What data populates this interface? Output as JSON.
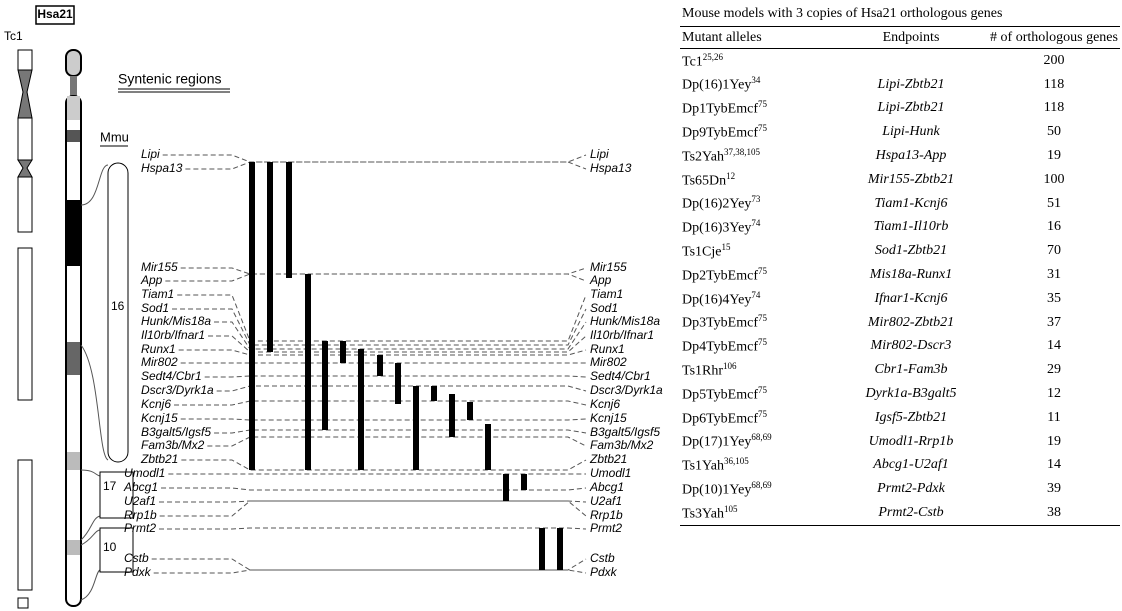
{
  "figure": {
    "tc1_label": "Tc1",
    "hsa21_label": "Hsa21",
    "syntenic_title": "Syntenic regions",
    "mmu_label": "Mmu",
    "chromosomes": [
      "16",
      "17",
      "10"
    ],
    "genes": [
      "Lipi",
      "Hspa13",
      "Mir155",
      "App",
      "Tiam1",
      "Sod1",
      "Hunk/Mis18a",
      "Il10rb/Ifnar1",
      "Runx1",
      "Mir802",
      "Sedt4/Cbr1",
      "Dscr3/Dyrk1a",
      "Kcnj6",
      "Kcnj15",
      "B3galt5/Igsf5",
      "Fam3b/Mx2",
      "Zbtb21",
      "Umodl1",
      "Abcg1",
      "U2af1",
      "Rrp1b",
      "Prmt2",
      "Cstb",
      "Pdxk"
    ]
  },
  "table": {
    "title": "Mouse models with 3 copies of Hsa21 orthologous genes",
    "headers": [
      "Mutant alleles",
      "Endpoints",
      "# of orthologous genes"
    ],
    "rows": [
      {
        "allele": "Tc1",
        "ref": "25,26",
        "genes": 200
      },
      {
        "allele": "Dp(16)1Yey",
        "ref": "34",
        "endpoints": "Lipi-Zbtb21",
        "genes": 118
      },
      {
        "allele": "Dp1TybEmcf",
        "ref": "75",
        "endpoints": "Lipi-Zbtb21",
        "genes": 118
      },
      {
        "allele": "Dp9TybEmcf",
        "ref": "75",
        "endpoints": "Lipi-Hunk",
        "genes": 50
      },
      {
        "allele": "Ts2Yah",
        "ref": "37,38,105",
        "endpoints": "Hspa13-App",
        "genes": 19
      },
      {
        "allele": "Ts65Dn",
        "ref": "12",
        "endpoints": "Mir155-Zbtb21",
        "genes": 100
      },
      {
        "allele": "Dp(16)2Yey",
        "ref": "73",
        "endpoints": "Tiam1-Kcnj6",
        "genes": 51
      },
      {
        "allele": "Dp(16)3Yey",
        "ref": "74",
        "endpoints": "Tiam1-Il10rb",
        "genes": 16
      },
      {
        "allele": "Ts1Cje",
        "ref": "15",
        "endpoints": "Sod1-Zbtb21",
        "genes": 70
      },
      {
        "allele": "Dp2TybEmcf",
        "ref": "75",
        "endpoints": "Mis18a-Runx1",
        "genes": 31
      },
      {
        "allele": "Dp(16)4Yey",
        "ref": "74",
        "endpoints": "Ifnar1-Kcnj6",
        "genes": 35
      },
      {
        "allele": "Dp3TybEmcf",
        "ref": "75",
        "endpoints": "Mir802-Zbtb21",
        "genes": 37
      },
      {
        "allele": "Dp4TybEmcf",
        "ref": "75",
        "endpoints": "Mir802-Dscr3",
        "genes": 14
      },
      {
        "allele": "Ts1Rhr",
        "ref": "106",
        "endpoints": "Cbr1-Fam3b",
        "genes": 29
      },
      {
        "allele": "Dp5TybEmcf",
        "ref": "75",
        "endpoints": "Dyrk1a-B3galt5",
        "genes": 12
      },
      {
        "allele": "Dp6TybEmcf",
        "ref": "75",
        "endpoints": "Igsf5-Zbtb21",
        "genes": 11
      },
      {
        "allele": "Dp(17)1Yey",
        "ref": "68,69",
        "endpoints": "Umodl1-Rrp1b",
        "genes": 19
      },
      {
        "allele": "Ts1Yah",
        "ref": "36,105",
        "endpoints": "Abcg1-U2af1",
        "genes": 14
      },
      {
        "allele": "Dp(10)1Yey",
        "ref": "68,69",
        "endpoints": "Prmt2-Pdxk",
        "genes": 39
      },
      {
        "allele": "Ts3Yah",
        "ref": "105",
        "endpoints": "Prmt2-Cstb",
        "genes": 38
      }
    ]
  }
}
